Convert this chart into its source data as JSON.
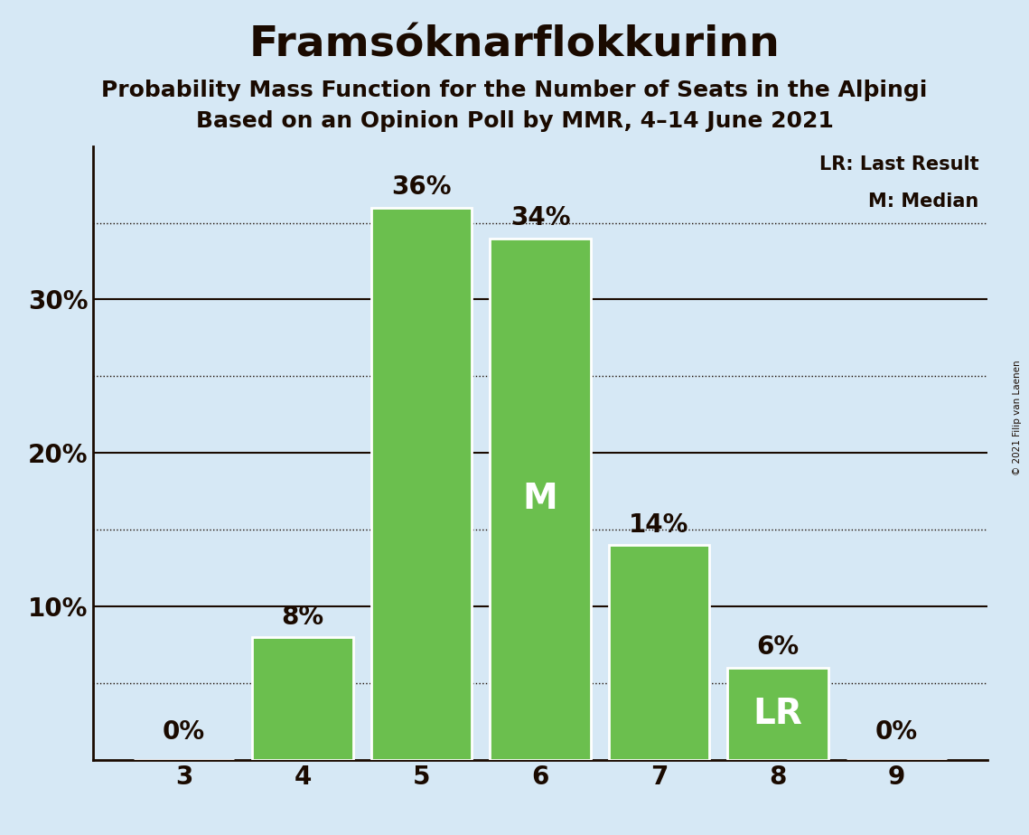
{
  "title": "Framsóknarflokkurinn",
  "subtitle1": "Probability Mass Function for the Number of Seats in the Alþingi",
  "subtitle2": "Based on an Opinion Poll by MMR, 4–14 June 2021",
  "copyright": "© 2021 Filip van Laenen",
  "categories": [
    3,
    4,
    5,
    6,
    7,
    8,
    9
  ],
  "values": [
    0,
    8,
    36,
    34,
    14,
    6,
    0
  ],
  "bar_color": "#6bbf4e",
  "background_color": "#d6e8f5",
  "text_color": "#1a0a00",
  "bar_label_color_outside": "#1a0a00",
  "bar_label_color_inside": "#ffffff",
  "median_seat": 6,
  "last_result_seat": 8,
  "legend_lr": "LR: Last Result",
  "legend_m": "M: Median",
  "yticks": [
    10,
    20,
    30
  ],
  "ytick_labels": [
    "10%",
    "20%",
    "30%"
  ],
  "ylim": [
    0,
    40
  ],
  "grid_lines": [
    5,
    15,
    25,
    35
  ],
  "solid_lines": [
    10,
    20,
    30
  ],
  "bar_edge_color": "#ffffff",
  "title_fontsize": 34,
  "subtitle_fontsize": 18,
  "axis_label_fontsize": 20,
  "bar_label_fontsize": 20,
  "inside_label_fontsize": 28
}
